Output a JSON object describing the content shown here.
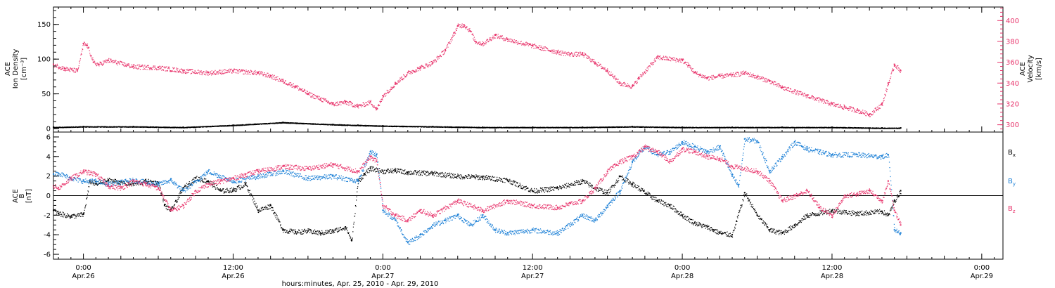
{
  "colors": {
    "black": "#000000",
    "pink": "#e8336b",
    "blue": "#1a7fd6"
  },
  "xaxis": {
    "label": "hours:minutes, Apr. 25, 2010 - Apr. 29, 2010",
    "ticks": [
      {
        "t": "0:00",
        "d": "Apr.26",
        "h": 24
      },
      {
        "t": "12:00",
        "d": "Apr.26",
        "h": 36
      },
      {
        "t": "0:00",
        "d": "Apr.27",
        "h": 48
      },
      {
        "t": "12:00",
        "d": "Apr.27",
        "h": 60
      },
      {
        "t": "0:00",
        "d": "Apr.28",
        "h": 72
      },
      {
        "t": "12:00",
        "d": "Apr.28",
        "h": 84
      },
      {
        "t": "0:00",
        "d": "Apr.29",
        "h": 96
      }
    ]
  },
  "chart_data": [
    {
      "type": "scatter",
      "panel": "top",
      "ylabel_left": [
        "ACE",
        "Ion Density",
        "[cm⁻³]"
      ],
      "ylabel_right": [
        "ACE",
        "Velocity",
        "[km/s]"
      ],
      "xlim_hours_from_apr25_0000": [
        21.6,
        97.7
      ],
      "ylim_left": [
        -5,
        175
      ],
      "yticks_left": [
        0,
        50,
        100,
        150
      ],
      "ylim_right": [
        293,
        413
      ],
      "yticks_right": [
        300,
        320,
        340,
        360,
        380,
        400
      ],
      "series": [
        {
          "axis": "left",
          "color": "black",
          "x": [
            21.6,
            24,
            28,
            32,
            36,
            40,
            44,
            46,
            48,
            52,
            56,
            60,
            64,
            68,
            72,
            76,
            80,
            84,
            88,
            89.5
          ],
          "values": [
            2,
            3,
            3,
            2,
            5,
            9,
            6,
            5,
            4,
            3,
            2,
            2,
            2,
            3,
            2,
            2,
            2,
            2,
            1,
            1
          ]
        },
        {
          "axis": "right",
          "color": "pink",
          "x": [
            21.6,
            22.5,
            23.5,
            24.0,
            24.3,
            24.8,
            25.2,
            26,
            28,
            30,
            32,
            34,
            36,
            38,
            39,
            40,
            41,
            42,
            43,
            44,
            45,
            46,
            47,
            47.5,
            48,
            49,
            50,
            51,
            52,
            53,
            53.7,
            54,
            54.5,
            55,
            55.4,
            56,
            57,
            58,
            60,
            62,
            63,
            64,
            65,
            66,
            67,
            68,
            68.5,
            70,
            72,
            72.5,
            73,
            74,
            75,
            76,
            77,
            78,
            79,
            80,
            82,
            84,
            85,
            86,
            87,
            88,
            88.5,
            89,
            89.5
          ],
          "values": [
            358,
            354,
            352,
            378,
            376,
            360,
            358,
            362,
            356,
            355,
            352,
            350,
            352,
            350,
            347,
            342,
            337,
            330,
            325,
            320,
            322,
            318,
            322,
            315,
            328,
            340,
            350,
            355,
            360,
            372,
            388,
            395,
            396,
            390,
            380,
            378,
            386,
            382,
            376,
            370,
            368,
            368,
            360,
            352,
            340,
            337,
            345,
            365,
            362,
            357,
            350,
            345,
            347,
            348,
            350,
            346,
            342,
            336,
            328,
            320,
            317,
            314,
            310,
            320,
            340,
            358,
            352
          ]
        }
      ]
    },
    {
      "type": "scatter",
      "panel": "bottom",
      "ylabel_left": [
        "ACE",
        "B",
        "[nT]"
      ],
      "xlim_hours_from_apr25_0000": [
        21.6,
        97.7
      ],
      "ylim": [
        -6.5,
        6.5
      ],
      "yticks": [
        -6,
        -4,
        -2,
        0,
        2,
        4,
        6
      ],
      "zero_line": true,
      "legend": [
        "Bx",
        "By",
        "Bz"
      ],
      "legend_position": "right",
      "series": [
        {
          "name": "Bx",
          "color": "black",
          "x": [
            21.6,
            22,
            23,
            24,
            24.5,
            25,
            26,
            27,
            28,
            29,
            30,
            30.5,
            31,
            32,
            33,
            34,
            35,
            36,
            37,
            38,
            39,
            40,
            41,
            42,
            43,
            44,
            45,
            45.5,
            46,
            46.5,
            47,
            48,
            49,
            50,
            52,
            54,
            56,
            58,
            60,
            62,
            64,
            65,
            66,
            67,
            68,
            70,
            71,
            72,
            73,
            74,
            74.5,
            75,
            76,
            77,
            78,
            79,
            80,
            81,
            82,
            84,
            86,
            88,
            88.5,
            89,
            89.5
          ],
          "values": [
            -1.5,
            -1.8,
            -2.1,
            -1.9,
            1.5,
            1.2,
            1.6,
            1.4,
            1.2,
            1.5,
            1.3,
            -1.0,
            -1.5,
            0.8,
            1.8,
            1.5,
            0.5,
            0.6,
            1.2,
            -1.5,
            -1.0,
            -3.5,
            -3.7,
            -3.6,
            -3.8,
            -3.6,
            -3.2,
            -4.6,
            1.5,
            2.2,
            2.8,
            2.5,
            2.6,
            2.4,
            2.3,
            2.0,
            1.9,
            1.6,
            0.5,
            0.8,
            1.5,
            0.8,
            0.3,
            2.0,
            1.2,
            -0.5,
            -1.0,
            -2.0,
            -2.8,
            -3.2,
            -3.5,
            -3.8,
            -4.0,
            0.3,
            -2.0,
            -3.5,
            -3.8,
            -3.0,
            -2.0,
            -1.5,
            -1.8,
            -1.6,
            -2.0,
            -0.5,
            0.5
          ]
        },
        {
          "name": "By",
          "color": "blue",
          "x": [
            21.6,
            22,
            23,
            24,
            25,
            26,
            28,
            30,
            31,
            32,
            34,
            36,
            38,
            40,
            42,
            44,
            46,
            47,
            47.5,
            48,
            49,
            50,
            51,
            52,
            53,
            54,
            55,
            56,
            57,
            58,
            60,
            62,
            64,
            65,
            66,
            67,
            68,
            69,
            70,
            71,
            72,
            73,
            74,
            75,
            76,
            76.5,
            77,
            78,
            79,
            80,
            81,
            82,
            83,
            84,
            86,
            88,
            88.5,
            89,
            89.5
          ],
          "values": [
            2.2,
            2.3,
            1.8,
            1.5,
            1.5,
            1.2,
            1.6,
            1.2,
            1.6,
            0.5,
            2.5,
            1.5,
            2.0,
            2.5,
            1.8,
            2.0,
            1.5,
            4.5,
            4.2,
            -1.5,
            -2.5,
            -4.8,
            -4.0,
            -3.0,
            -2.5,
            -2.0,
            -3.0,
            -2.0,
            -3.5,
            -3.8,
            -3.5,
            -3.8,
            -2.0,
            -2.5,
            -1.0,
            0.5,
            3.5,
            5.0,
            4.2,
            4.5,
            5.5,
            5.0,
            4.5,
            5.0,
            2.0,
            1.0,
            5.8,
            5.6,
            2.5,
            4.0,
            5.5,
            4.8,
            4.5,
            4.2,
            4.2,
            4.0,
            4.2,
            -3.5,
            -3.8
          ]
        },
        {
          "name": "Bz",
          "color": "pink",
          "x": [
            21.6,
            22,
            23,
            24,
            25,
            26,
            27,
            28,
            29,
            30,
            31,
            32,
            33,
            34,
            35,
            36,
            37,
            38,
            40,
            42,
            44,
            46,
            47,
            47.5,
            48,
            49,
            50,
            51,
            52,
            54,
            56,
            58,
            60,
            62,
            63,
            64,
            65,
            66,
            67,
            68,
            69,
            70,
            71,
            72,
            73,
            74,
            75,
            76,
            77,
            78,
            79,
            80,
            81,
            82,
            83,
            84,
            85,
            86,
            87,
            88,
            88.5,
            89,
            89.5
          ],
          "values": [
            1.0,
            0.8,
            1.8,
            2.5,
            2.2,
            1.0,
            0.8,
            1.5,
            1.2,
            0.8,
            -1.5,
            -1.0,
            0.5,
            1.2,
            1.5,
            1.8,
            2.2,
            2.5,
            3.0,
            2.8,
            3.2,
            2.5,
            4.0,
            3.5,
            -1.0,
            -2.0,
            -2.5,
            -1.5,
            -2.0,
            -0.5,
            -1.5,
            -0.5,
            -1.0,
            -1.2,
            -0.8,
            -0.5,
            0.8,
            2.5,
            3.5,
            4.0,
            5.0,
            4.5,
            3.5,
            4.8,
            4.5,
            4.0,
            3.8,
            3.0,
            2.8,
            2.5,
            1.5,
            -0.5,
            0.0,
            0.5,
            -1.2,
            -2.0,
            0.0,
            0.2,
            0.5,
            -0.5,
            1.5,
            -1.5,
            -3.0
          ]
        }
      ]
    }
  ]
}
